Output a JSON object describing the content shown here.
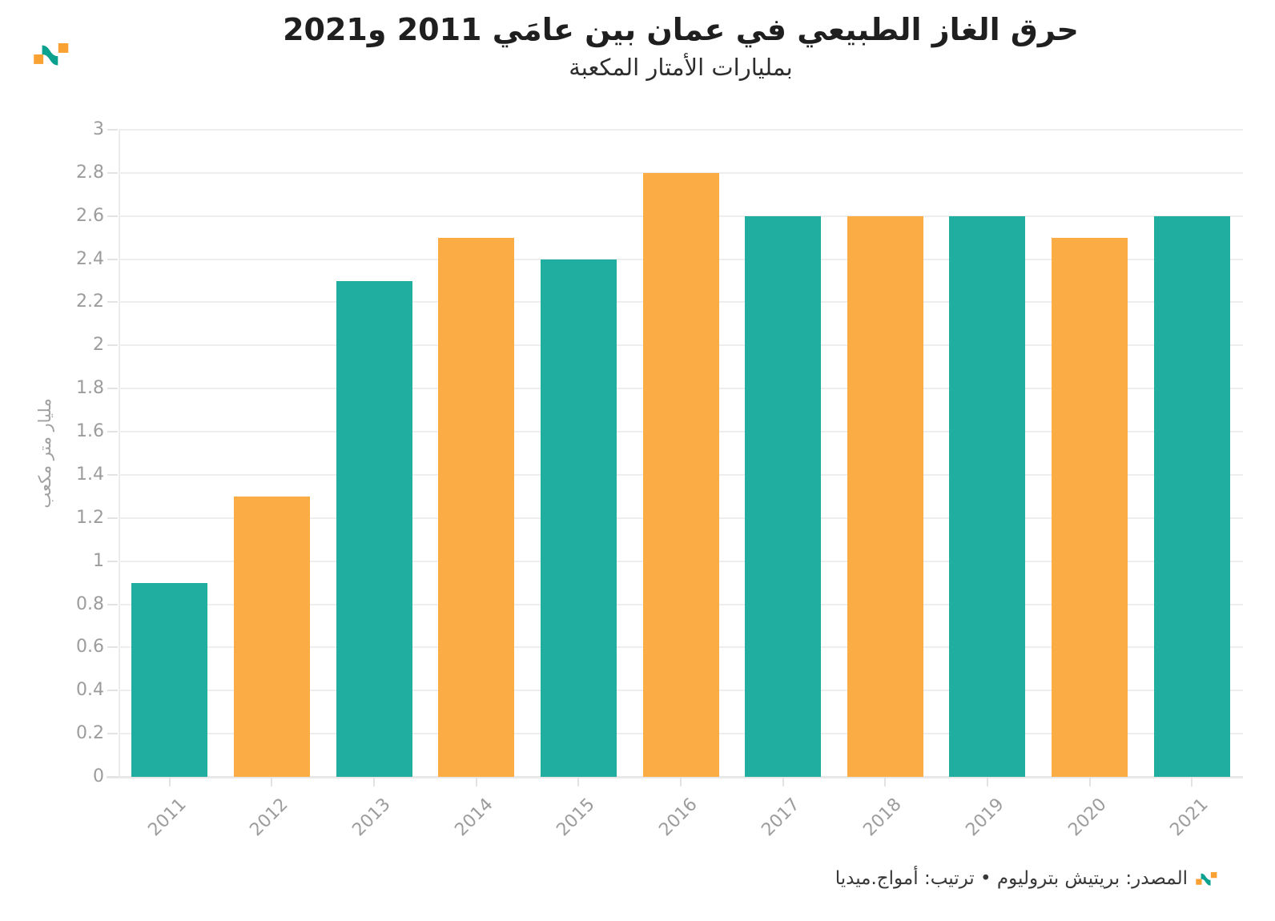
{
  "header": {
    "title": "حرق الغاز الطبيعي في عمان بين عامَي 2011 و2021",
    "subtitle": "بمليارات الأمتار المكعبة"
  },
  "chart_data": {
    "type": "bar",
    "categories": [
      "2011",
      "2012",
      "2013",
      "2014",
      "2015",
      "2016",
      "2017",
      "2018",
      "2019",
      "2020",
      "2021"
    ],
    "values": [
      0.9,
      1.3,
      2.3,
      2.5,
      2.4,
      2.8,
      2.6,
      2.6,
      2.6,
      2.5,
      2.6
    ],
    "bar_colors": [
      "#1FAE9F",
      "#FCAC44",
      "#1FAE9F",
      "#FCAC44",
      "#1FAE9F",
      "#FCAC44",
      "#1FAE9F",
      "#FCAC44",
      "#1FAE9F",
      "#FCAC44",
      "#1FAE9F"
    ],
    "title": "حرق الغاز الطبيعي في عمان بين عامَي 2011 و2021",
    "subtitle": "بمليارات الأمتار المكعبة",
    "xlabel": "",
    "ylabel": "مليار متر مكعب",
    "ylim": [
      0,
      3
    ],
    "ytick_step": 0.2,
    "ytick_labels": [
      "0",
      "0.2",
      "0.4",
      "0.6",
      "0.8",
      "1",
      "1.2",
      "1.4",
      "1.6",
      "1.8",
      "2",
      "2.2",
      "2.4",
      "2.6",
      "2.8",
      "3"
    ],
    "grid": "horizontal-only",
    "legend": "none",
    "x_label_rotation_deg": -45
  },
  "footer": {
    "source": "المصدر: بريتيش بتروليوم • ترتيب: أمواج.ميديا"
  },
  "colors": {
    "teal": "#1FAE9F",
    "orange": "#FCAC44",
    "logo_teal": "#0BA18F",
    "logo_orange": "#F9A233",
    "gridline": "#EEEEEE",
    "axis_line": "#E3E3E3",
    "tick_label": "#9C9C9C",
    "title_text": "#1F1F1F",
    "footer_text": "#383838"
  },
  "icons": {
    "brand_logo": "amwaj-wave-logo"
  }
}
